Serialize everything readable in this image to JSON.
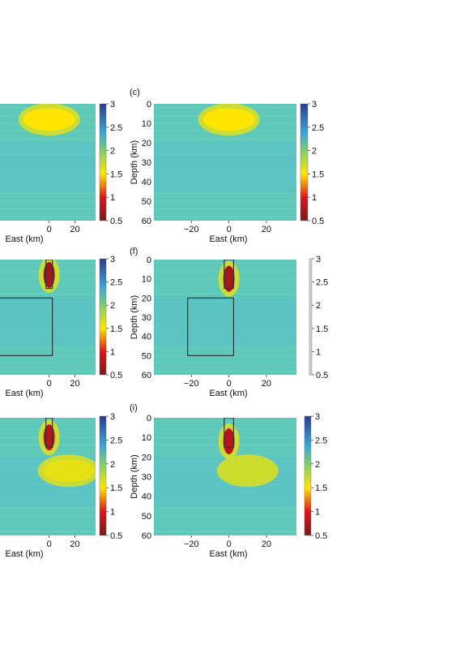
{
  "chart_data": [
    {
      "type": "heatmap",
      "panel_label": "",
      "xlabel": "East (km)",
      "ylabel": "",
      "x_ticks": [
        "0",
        "20"
      ],
      "y_ticks": [],
      "colorbar_ticks": [
        "3",
        "2.5",
        "2",
        "1.5",
        "1",
        "0.5"
      ],
      "clim": [
        0.5,
        3
      ],
      "anomalies": [
        {
          "x": 0,
          "depth": 8,
          "value": 1.5
        }
      ],
      "boxes": []
    },
    {
      "type": "heatmap",
      "panel_label": "(c)",
      "xlabel": "East (km)",
      "ylabel": "Depth (km)",
      "x_ticks": [
        "−20",
        "0",
        "20"
      ],
      "y_ticks": [
        "0",
        "10",
        "20",
        "30",
        "40",
        "50",
        "60"
      ],
      "colorbar_ticks": [
        "3",
        "2.5",
        "2",
        "1.5",
        "1",
        "0.5"
      ],
      "clim": [
        0.5,
        3
      ],
      "anomalies": [
        {
          "x": 0,
          "depth": 8,
          "value": 1.5
        }
      ],
      "boxes": []
    },
    {
      "type": "heatmap",
      "panel_label": "",
      "xlabel": "East (km)",
      "ylabel": "",
      "x_ticks": [
        "0",
        "20"
      ],
      "y_ticks": [],
      "colorbar_ticks": [
        "3",
        "2.5",
        "2",
        "1.5",
        "1",
        "0.5"
      ],
      "clim": [
        0.5,
        3
      ],
      "anomalies": [
        {
          "x": 0,
          "depth": 8,
          "value": 0.7
        }
      ],
      "boxes": [
        {
          "x": [
            -2.5,
            2.5
          ],
          "depth": [
            0,
            15
          ]
        },
        {
          "x": [
            -40,
            2.5
          ],
          "depth": [
            20,
            50
          ]
        }
      ]
    },
    {
      "type": "heatmap",
      "panel_label": "(f)",
      "xlabel": "East (km)",
      "ylabel": "Depth (km)",
      "x_ticks": [
        "−20",
        "0",
        "20"
      ],
      "y_ticks": [
        "0",
        "10",
        "20",
        "30",
        "40",
        "50",
        "60"
      ],
      "colorbar_ticks": [
        "3",
        "2.5",
        "2",
        "1.5",
        "1",
        "0.5"
      ],
      "clim": [
        0.5,
        3
      ],
      "anomalies": [
        {
          "x": 0,
          "depth": 10,
          "value": 0.7
        }
      ],
      "boxes": [
        {
          "x": [
            -2.5,
            2.5
          ],
          "depth": [
            0,
            15
          ]
        },
        {
          "x": [
            -22,
            2.5
          ],
          "depth": [
            20,
            50
          ]
        }
      ]
    },
    {
      "type": "heatmap",
      "panel_label": "",
      "xlabel": "East (km)",
      "ylabel": "",
      "x_ticks": [
        "0",
        "20"
      ],
      "y_ticks": [],
      "colorbar_ticks": [
        "3",
        "2.5",
        "2",
        "1.5",
        "1",
        "0.5"
      ],
      "clim": [
        0.5,
        3
      ],
      "anomalies": [
        {
          "x": 0,
          "depth": 10,
          "value": 0.8
        },
        {
          "x": 15,
          "depth": 27,
          "value": 1.6
        }
      ],
      "boxes": [
        {
          "x": [
            -2.5,
            2.5
          ],
          "depth": [
            0,
            15
          ]
        }
      ]
    },
    {
      "type": "heatmap",
      "panel_label": "(i)",
      "xlabel": "East (km)",
      "ylabel": "Depth (km)",
      "x_ticks": [
        "−20",
        "0",
        "20"
      ],
      "y_ticks": [
        "0",
        "10",
        "20",
        "30",
        "40",
        "50",
        "60"
      ],
      "colorbar_ticks": [
        "3",
        "2.5",
        "2",
        "1.5",
        "1",
        "0.5"
      ],
      "clim": [
        0.5,
        3
      ],
      "anomalies": [
        {
          "x": 0,
          "depth": 12,
          "value": 0.8
        },
        {
          "x": 10,
          "depth": 27,
          "value": 1.7
        }
      ],
      "boxes": [
        {
          "x": [
            -2.5,
            2.5
          ],
          "depth": [
            0,
            15
          ]
        }
      ]
    }
  ],
  "colors": {
    "background": "#5ec9b9",
    "colormap": [
      "#7b1a1a",
      "#e0141a",
      "#ffe500",
      "#7ed06a",
      "#3aa7dd",
      "#2b3b93"
    ]
  }
}
